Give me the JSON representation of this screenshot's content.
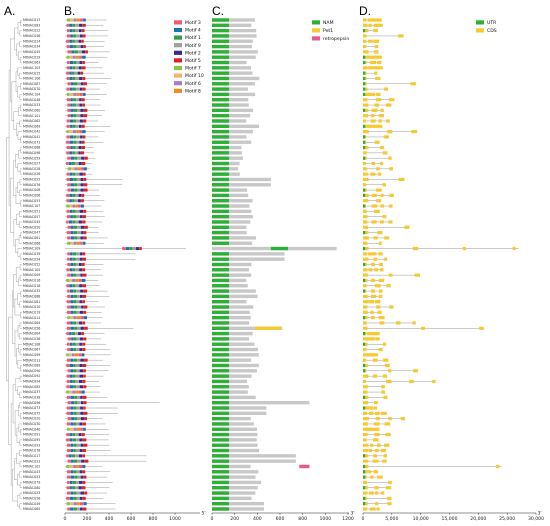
{
  "figure": {
    "panel_labels": [
      "A.",
      "B.",
      "C.",
      "D."
    ],
    "axis_end_marks": {
      "b": "5'",
      "c": "3'",
      "d": "3'"
    }
  },
  "genes": [
    "MtNAC013",
    "MtNAC083",
    "MtNAC022",
    "MtNAC046",
    "MtNAC024",
    "MtNAC034",
    "MtNAC045",
    "MtNAC029",
    "MtNAC063",
    "MtNAC103",
    "MtNAC015",
    "MtNAC106",
    "MtNAC087",
    "MtNAC070",
    "MtNAC104",
    "MtNAC048",
    "MtNAC033",
    "MtNAC060",
    "MtNAC101",
    "MtNAC062",
    "MtNAC069",
    "MtNAC042",
    "MtNAC041",
    "MtNAC071",
    "MtNAC068",
    "MtNAC098",
    "MtNAC059",
    "MtNAC027",
    "MtNAC028",
    "MtNAC026",
    "MtNAC025",
    "MtNAC076",
    "MtNAC008",
    "MtNAC006",
    "MtNAC053",
    "MtNAC107",
    "MtNAC051",
    "MtNAC057",
    "MtNAC045",
    "MtNAC050",
    "MtNAC047",
    "MtNAC061",
    "MtNAC066",
    "MtNAC109",
    "MtNAC039",
    "MtNAC054",
    "MtNAC052",
    "MtNAC105",
    "MtNAC009",
    "MtNAC016",
    "MtNAC018",
    "MtNAC035",
    "MtNAC088",
    "MtNAC081",
    "MtNAC010",
    "MtNAC019",
    "MtNAC014",
    "MtNAC064",
    "MtNAC056",
    "MtNAC084",
    "MtNAC036",
    "MtNAC108",
    "MtNAC067",
    "MtNAC099",
    "MtNAC011",
    "MtNAC089",
    "MtNAC090",
    "MtNAC092",
    "MtNAC094",
    "MtNAC085",
    "MtNAC037",
    "MtNAC038",
    "MtNAC096",
    "MtNAC073",
    "MtNAC075",
    "MtNAC020",
    "MtNAC030",
    "MtNAC040",
    "MtNAC091",
    "MtNAC095",
    "MtNAC093",
    "MtNAC078",
    "MtNAC017",
    "MtNAC021",
    "MtNAC102",
    "MtNAC043",
    "MtNAC053",
    "MtNAC079",
    "MtNAC080",
    "MtNAC023",
    "MtNAC058",
    "MtNAC049",
    "MtNAC065"
  ],
  "chart_data": [
    {
      "type": "other",
      "panel": "B",
      "legend": [
        {
          "name": "Motif 3",
          "color": "#ef5a7a"
        },
        {
          "name": "Motif 4",
          "color": "#1f6fb4"
        },
        {
          "name": "Motif 1",
          "color": "#2f9e44"
        },
        {
          "name": "Motif 9",
          "color": "#9e9e9e"
        },
        {
          "name": "Motif 2",
          "color": "#3b2a8f"
        },
        {
          "name": "Motif 5",
          "color": "#e32020"
        },
        {
          "name": "Motif 7",
          "color": "#8bc34a"
        },
        {
          "name": "Motif 10",
          "color": "#f2b56a"
        },
        {
          "name": "Motif 6",
          "color": "#a57fc4"
        },
        {
          "name": "Motif 8",
          "color": "#f08a1a"
        }
      ],
      "x_ticks": [
        0,
        200,
        400,
        600,
        800,
        1000
      ],
      "xlim": [
        0,
        1200
      ]
    },
    {
      "type": "other",
      "panel": "C",
      "legend": [
        {
          "name": "NAM",
          "color": "#2eaf36"
        },
        {
          "name": "Pet1",
          "color": "#f7c92e"
        },
        {
          "name": "retropepsin",
          "color": "#e85a8c"
        }
      ],
      "x_ticks": [
        0,
        200,
        400,
        600,
        800,
        1000,
        1200
      ],
      "xlim": [
        0,
        1200
      ]
    },
    {
      "type": "other",
      "panel": "D",
      "legend": [
        {
          "name": "UTR",
          "color": "#2eaf36"
        },
        {
          "name": "CDS",
          "color": "#f7c92e"
        }
      ],
      "x_ticks": [
        "0",
        "5,000",
        "10,000",
        "15,000",
        "20,000",
        "25,000",
        "30,000"
      ],
      "xlim": [
        0,
        30000
      ]
    }
  ]
}
